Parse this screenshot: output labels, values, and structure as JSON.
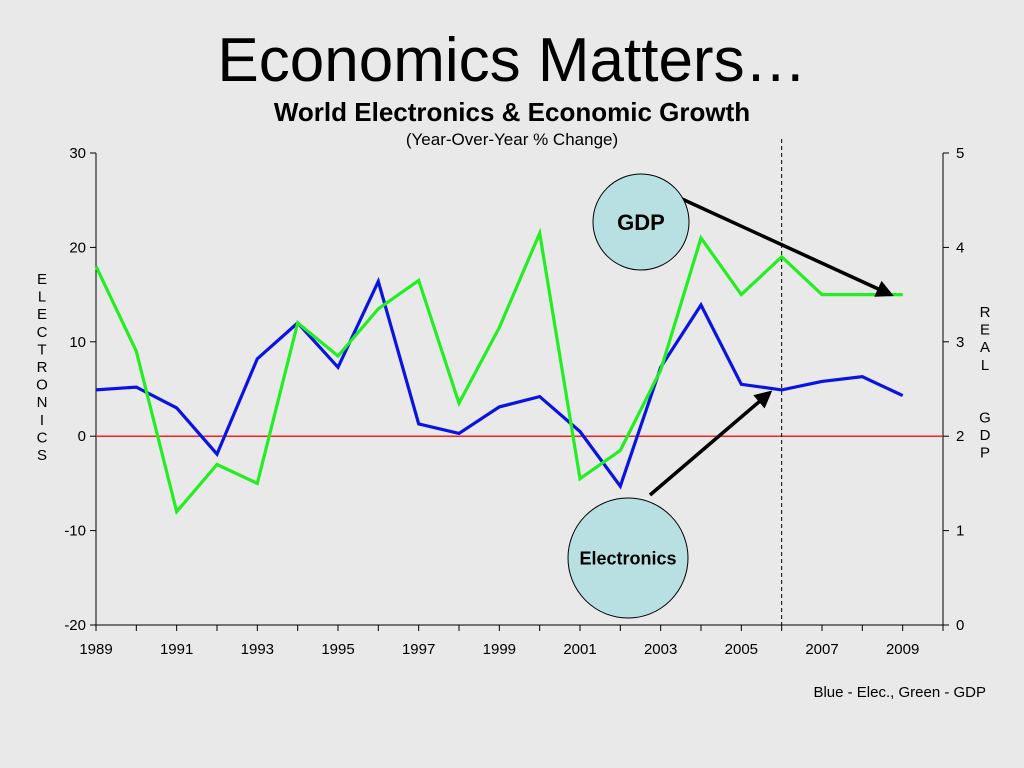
{
  "slide": {
    "title": "Economics Matters…",
    "footnote": "Blue - Elec., Green - GDP"
  },
  "chart_data": {
    "type": "line",
    "title": "World Electronics & Economic Growth",
    "subtitle": "(Year-Over-Year % Change)",
    "x": [
      1989,
      1990,
      1991,
      1992,
      1993,
      1994,
      1995,
      1996,
      1997,
      1998,
      1999,
      2000,
      2001,
      2002,
      2003,
      2004,
      2005,
      2006,
      2007,
      2008,
      2009
    ],
    "x_ticks": [
      1989,
      1991,
      1993,
      1995,
      1997,
      1999,
      2001,
      2003,
      2005,
      2007,
      2009
    ],
    "xlim": [
      1989,
      2010
    ],
    "y_left": {
      "label": "ELECTRONICS",
      "lim": [
        -20,
        30
      ],
      "ticks": [
        -20,
        -10,
        0,
        10,
        20,
        30
      ]
    },
    "y_right": {
      "label_lines": [
        "REAL",
        "GDP"
      ],
      "lim": [
        0,
        5
      ],
      "ticks": [
        0,
        1,
        2,
        3,
        4,
        5
      ]
    },
    "series": [
      {
        "axis": "left",
        "color": "#0a14e0",
        "values": [
          4.9,
          5.2,
          3.0,
          -1.9,
          8.2,
          12.0,
          7.3,
          16.4,
          1.3,
          0.3,
          3.1,
          4.2,
          0.5,
          -5.3,
          7.3,
          13.9,
          5.5,
          4.9,
          5.8,
          6.3,
          4.3
        ]
      },
      {
        "axis": "right",
        "color": "#22ee22",
        "values": [
          3.8,
          2.9,
          1.2,
          1.7,
          1.5,
          3.2,
          2.85,
          3.35,
          3.65,
          2.35,
          3.15,
          4.15,
          1.55,
          1.85,
          2.7,
          4.1,
          3.5,
          3.9,
          3.5,
          3.5,
          3.5
        ]
      }
    ],
    "zero_line": {
      "value": 0,
      "color": "#ff2020"
    },
    "forecast_divider_x": 2006,
    "legend": "bottom-right text",
    "callouts": [
      {
        "label": "GDP",
        "target": [
          2008.7,
          3.5
        ],
        "target_axis": "right"
      },
      {
        "label": "Electronics",
        "target": [
          2005.7,
          4.6
        ],
        "target_axis": "left"
      }
    ],
    "callout_fill": "#b8e0e2"
  }
}
